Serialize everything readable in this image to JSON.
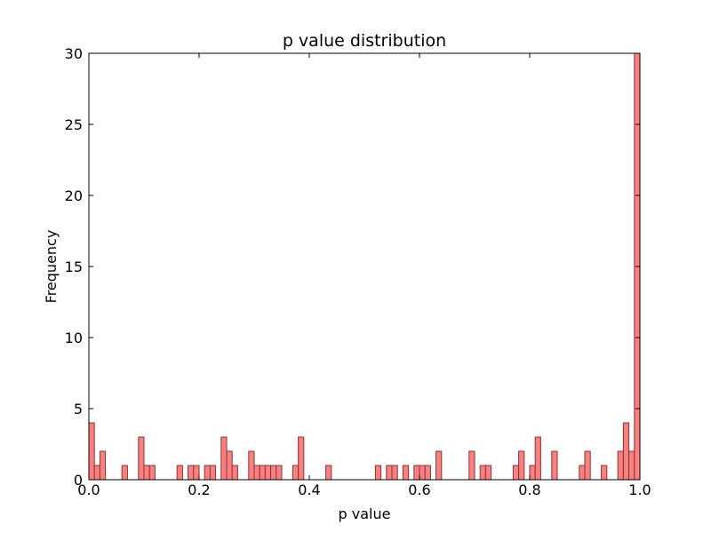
{
  "chart_data": {
    "type": "bar",
    "title": "p value distribution",
    "xlabel": "p value",
    "ylabel": "Frequency",
    "xlim": [
      0.0,
      1.0
    ],
    "ylim": [
      0,
      30
    ],
    "xticks": [
      "0.0",
      "0.2",
      "0.4",
      "0.6",
      "0.8",
      "1.0"
    ],
    "yticks": [
      "0",
      "5",
      "10",
      "15",
      "20",
      "25",
      "30"
    ],
    "bins": 100,
    "bin_width": 0.01,
    "bin_starts": [
      0.0,
      0.01,
      0.02,
      0.03,
      0.04,
      0.05,
      0.06,
      0.07,
      0.08,
      0.09,
      0.1,
      0.11,
      0.12,
      0.13,
      0.14,
      0.15,
      0.16,
      0.17,
      0.18,
      0.19,
      0.2,
      0.21,
      0.22,
      0.23,
      0.24,
      0.25,
      0.26,
      0.27,
      0.28,
      0.29,
      0.3,
      0.31,
      0.32,
      0.33,
      0.34,
      0.35,
      0.36,
      0.37,
      0.38,
      0.39,
      0.4,
      0.41,
      0.42,
      0.43,
      0.44,
      0.45,
      0.46,
      0.47,
      0.48,
      0.49,
      0.5,
      0.51,
      0.52,
      0.53,
      0.54,
      0.55,
      0.56,
      0.57,
      0.58,
      0.59,
      0.6,
      0.61,
      0.62,
      0.63,
      0.64,
      0.65,
      0.66,
      0.67,
      0.68,
      0.69,
      0.7,
      0.71,
      0.72,
      0.73,
      0.74,
      0.75,
      0.76,
      0.77,
      0.78,
      0.79,
      0.8,
      0.81,
      0.82,
      0.83,
      0.84,
      0.85,
      0.86,
      0.87,
      0.88,
      0.89,
      0.9,
      0.91,
      0.92,
      0.93,
      0.94,
      0.95,
      0.96,
      0.97,
      0.98,
      0.99
    ],
    "values": [
      4,
      1,
      2,
      0,
      0,
      0,
      1,
      0,
      0,
      3,
      1,
      1,
      0,
      0,
      0,
      0,
      1,
      0,
      1,
      1,
      0,
      1,
      1,
      0,
      3,
      2,
      1,
      0,
      0,
      2,
      1,
      1,
      1,
      1,
      1,
      0,
      0,
      1,
      3,
      0,
      0,
      0,
      0,
      1,
      0,
      0,
      0,
      0,
      0,
      0,
      0,
      0,
      1,
      0,
      1,
      1,
      0,
      1,
      0,
      1,
      1,
      1,
      0,
      2,
      0,
      0,
      0,
      0,
      0,
      2,
      0,
      1,
      1,
      0,
      0,
      0,
      0,
      1,
      2,
      0,
      1,
      3,
      0,
      0,
      2,
      0,
      0,
      0,
      0,
      1,
      2,
      0,
      0,
      1,
      0,
      0,
      2,
      4,
      2,
      30
    ],
    "colors": {
      "bar_fill": "#ff7f7f",
      "bar_edge": "#7a3a3a",
      "axes": "#000000"
    },
    "grid": false,
    "legend": false
  }
}
